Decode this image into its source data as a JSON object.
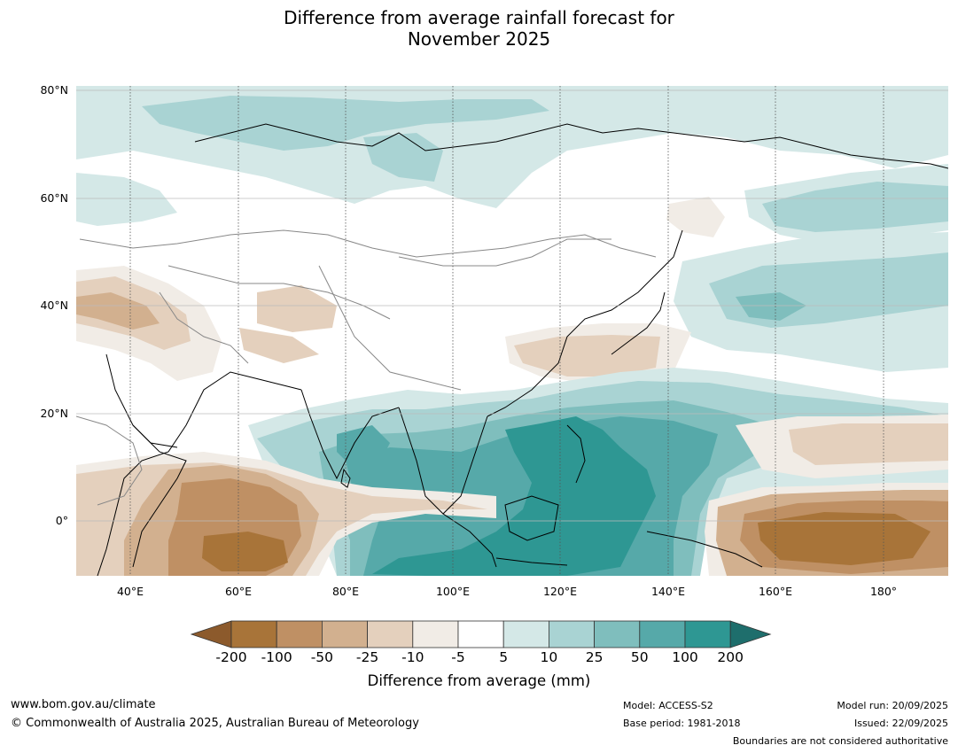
{
  "title_line1": "Difference from average rainfall forecast for",
  "title_line2": "November 2025",
  "lat_labels": [
    "80°N",
    "60°N",
    "40°N",
    "20°N",
    "0°"
  ],
  "lon_labels": [
    "40°E",
    "60°E",
    "80°E",
    "100°E",
    "120°E",
    "140°E",
    "160°E",
    "180°"
  ],
  "colorbar": {
    "ticks": [
      "-200",
      "-100",
      "-50",
      "-25",
      "-10",
      "-5",
      "5",
      "10",
      "25",
      "50",
      "100",
      "200"
    ],
    "colors": [
      "#8c5a2c",
      "#a87439",
      "#bf9064",
      "#d2b08f",
      "#e4d0bd",
      "#f1ece6",
      "#ffffff",
      "#d4e8e7",
      "#a9d3d3",
      "#7fbebd",
      "#56a9a9",
      "#2e9793",
      "#1e6e6c"
    ],
    "label": "Difference from average (mm)"
  },
  "footer": {
    "website": "www.bom.gov.au/climate",
    "copyright": "© Commonwealth of Australia 2025, Australian Bureau of Meteorology",
    "model": "Model: ACCESS-S2",
    "base_period": "Base period: 1981-2018",
    "model_run": "Model run: 20/09/2025",
    "issued": "Issued: 22/09/2025",
    "disclaimer": "Boundaries are not considered authoritative"
  }
}
